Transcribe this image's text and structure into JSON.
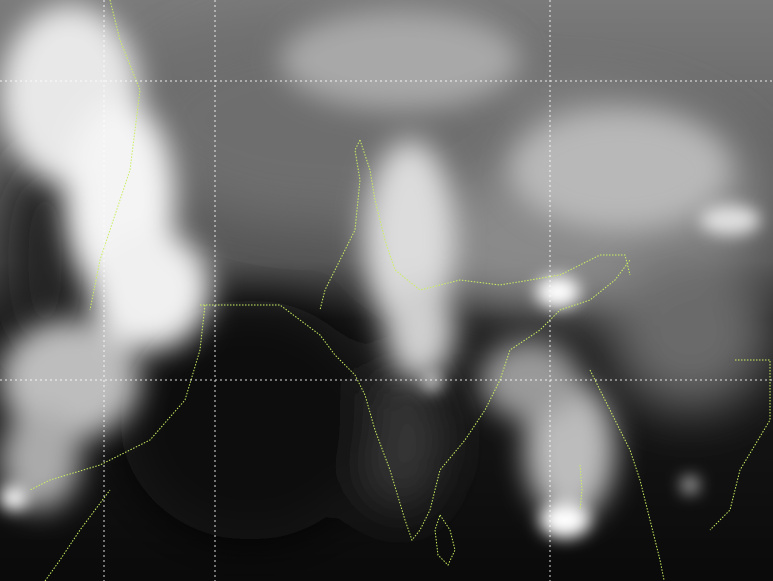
{
  "image": {
    "kind": "infrared satellite imagery",
    "colors": {
      "ocean": "#0c0c0c",
      "land": "#5a5a5a",
      "cloud": "#ffffff",
      "coastline": "#c8f060",
      "graticule": "#ffffff"
    },
    "graticule": {
      "style": "dotted",
      "vertical_lines": 3,
      "horizontal_lines": 2
    }
  }
}
